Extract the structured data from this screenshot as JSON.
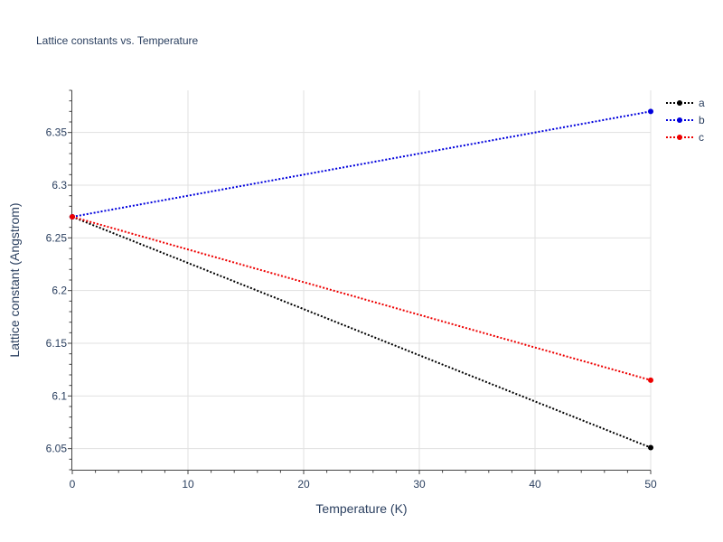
{
  "chart_data": {
    "type": "line",
    "title": "Lattice constants vs. Temperature",
    "xlabel": "Temperature (K)",
    "ylabel": "Lattice constant (Angstrom)",
    "x": [
      0,
      50
    ],
    "xlim": [
      0,
      50
    ],
    "ylim": [
      6.03,
      6.39
    ],
    "xticks": [
      0,
      10,
      20,
      30,
      40,
      50
    ],
    "yticks": [
      6.05,
      6.1,
      6.15,
      6.2,
      6.25,
      6.3,
      6.35
    ],
    "grid": true,
    "legend_position": "top-right",
    "series": [
      {
        "name": "a",
        "color": "#000000",
        "values": [
          6.27,
          6.051
        ]
      },
      {
        "name": "b",
        "color": "#0000dd",
        "values": [
          6.27,
          6.37
        ]
      },
      {
        "name": "c",
        "color": "#ee0000",
        "values": [
          6.27,
          6.115
        ]
      }
    ]
  }
}
